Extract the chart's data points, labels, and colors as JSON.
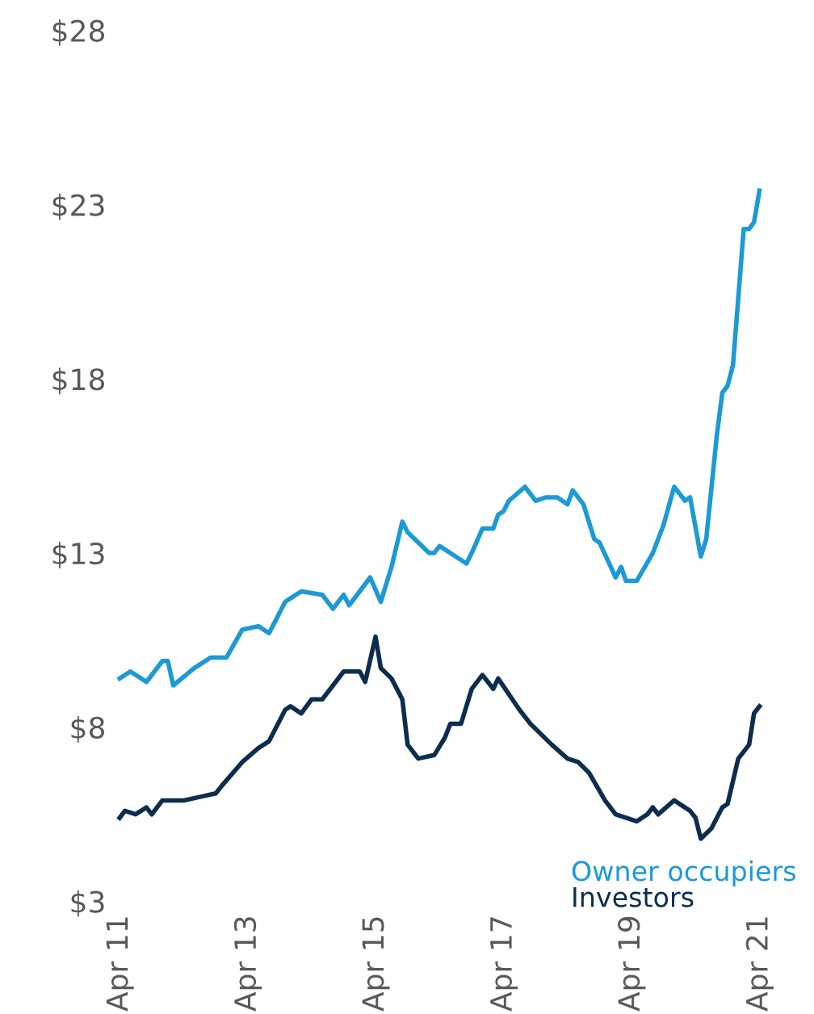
{
  "chart_data": {
    "type": "line",
    "xlim": [
      "2011-04",
      "2021-04"
    ],
    "ylim": [
      3,
      28
    ],
    "yticks": [
      {
        "value": 3,
        "label": "$3"
      },
      {
        "value": 8,
        "label": "$8"
      },
      {
        "value": 13,
        "label": "$13"
      },
      {
        "value": 18,
        "label": "$18"
      },
      {
        "value": 23,
        "label": "$23"
      },
      {
        "value": 28,
        "label": "$28"
      }
    ],
    "xticks": [
      {
        "value": "2011-04",
        "label": "Apr 11"
      },
      {
        "value": "2013-04",
        "label": "Apr 13"
      },
      {
        "value": "2015-04",
        "label": "Apr 15"
      },
      {
        "value": "2017-04",
        "label": "Apr 17"
      },
      {
        "value": "2019-04",
        "label": "Apr 19"
      },
      {
        "value": "2021-04",
        "label": "Apr 21"
      }
    ],
    "grid": false,
    "legend": "bottom right",
    "marker": "none",
    "line_style": "solid",
    "series": [
      {
        "name": "Owner occupiers",
        "color": "#1b9ad6",
        "x": [
          "2011-04",
          "2011-06",
          "2011-09",
          "2011-12",
          "2012-01",
          "2012-02",
          "2012-06",
          "2012-09",
          "2012-12",
          "2013-03",
          "2013-06",
          "2013-08",
          "2013-11",
          "2013-12",
          "2014-02",
          "2014-06",
          "2014-08",
          "2014-10",
          "2014-11",
          "2015-01",
          "2015-03",
          "2015-05",
          "2015-07",
          "2015-09",
          "2015-10",
          "2015-12",
          "2016-02",
          "2016-03",
          "2016-04",
          "2016-06",
          "2016-09",
          "2016-10",
          "2016-12",
          "2017-02",
          "2017-03",
          "2017-04",
          "2017-05",
          "2017-08",
          "2017-10",
          "2017-12",
          "2018-02",
          "2018-04",
          "2018-05",
          "2018-07",
          "2018-09",
          "2018-10",
          "2019-01",
          "2019-02",
          "2019-03",
          "2019-05",
          "2019-08",
          "2019-10",
          "2019-12",
          "2020-02",
          "2020-03",
          "2020-05",
          "2020-06",
          "2020-08",
          "2020-09",
          "2020-10",
          "2020-11",
          "2021-01",
          "2021-02",
          "2021-03",
          "2021-04"
        ],
        "values": [
          9.4,
          9.6,
          9.3,
          9.9,
          9.9,
          9.2,
          9.7,
          10.0,
          10.0,
          10.8,
          10.9,
          10.7,
          11.6,
          11.7,
          11.9,
          11.8,
          11.4,
          11.8,
          11.5,
          11.9,
          12.3,
          11.6,
          12.6,
          13.9,
          13.6,
          13.3,
          13.0,
          13.0,
          13.2,
          13.0,
          12.7,
          13.0,
          13.7,
          13.7,
          14.1,
          14.2,
          14.5,
          14.9,
          14.5,
          14.6,
          14.6,
          14.4,
          14.8,
          14.4,
          13.4,
          13.3,
          12.3,
          12.6,
          12.2,
          12.2,
          13.0,
          13.8,
          14.9,
          14.5,
          14.6,
          12.9,
          13.4,
          16.4,
          17.6,
          17.8,
          18.4,
          22.3,
          22.3,
          22.5,
          23.4
        ]
      },
      {
        "name": "Investors",
        "color": "#0d2d4f",
        "x": [
          "2011-04",
          "2011-05",
          "2011-07",
          "2011-09",
          "2011-10",
          "2011-12",
          "2012-04",
          "2012-07",
          "2012-10",
          "2012-11",
          "2013-03",
          "2013-06",
          "2013-08",
          "2013-11",
          "2013-12",
          "2014-02",
          "2014-04",
          "2014-06",
          "2014-08",
          "2014-10",
          "2015-01",
          "2015-02",
          "2015-04",
          "2015-05",
          "2015-07",
          "2015-09",
          "2015-10",
          "2015-12",
          "2016-03",
          "2016-05",
          "2016-06",
          "2016-08",
          "2016-10",
          "2016-12",
          "2017-02",
          "2017-03",
          "2017-07",
          "2017-09",
          "2018-01",
          "2018-04",
          "2018-06",
          "2018-08",
          "2018-11",
          "2019-01",
          "2019-05",
          "2019-07",
          "2019-08",
          "2019-09",
          "2019-12",
          "2020-03",
          "2020-04",
          "2020-05",
          "2020-07",
          "2020-09",
          "2020-10",
          "2020-12",
          "2021-02",
          "2021-03",
          "2021-04"
        ],
        "values": [
          5.4,
          5.6,
          5.5,
          5.7,
          5.5,
          5.9,
          5.9,
          6.0,
          6.1,
          6.3,
          7.0,
          7.4,
          7.6,
          8.5,
          8.6,
          8.4,
          8.8,
          8.8,
          9.2,
          9.6,
          9.6,
          9.3,
          10.6,
          9.7,
          9.4,
          8.8,
          7.5,
          7.1,
          7.2,
          7.7,
          8.1,
          8.1,
          9.1,
          9.5,
          9.1,
          9.4,
          8.5,
          8.1,
          7.5,
          7.1,
          7.0,
          6.7,
          5.9,
          5.5,
          5.3,
          5.5,
          5.7,
          5.5,
          5.9,
          5.6,
          5.4,
          4.8,
          5.1,
          5.7,
          5.8,
          7.1,
          7.5,
          8.4,
          8.6
        ]
      }
    ]
  }
}
